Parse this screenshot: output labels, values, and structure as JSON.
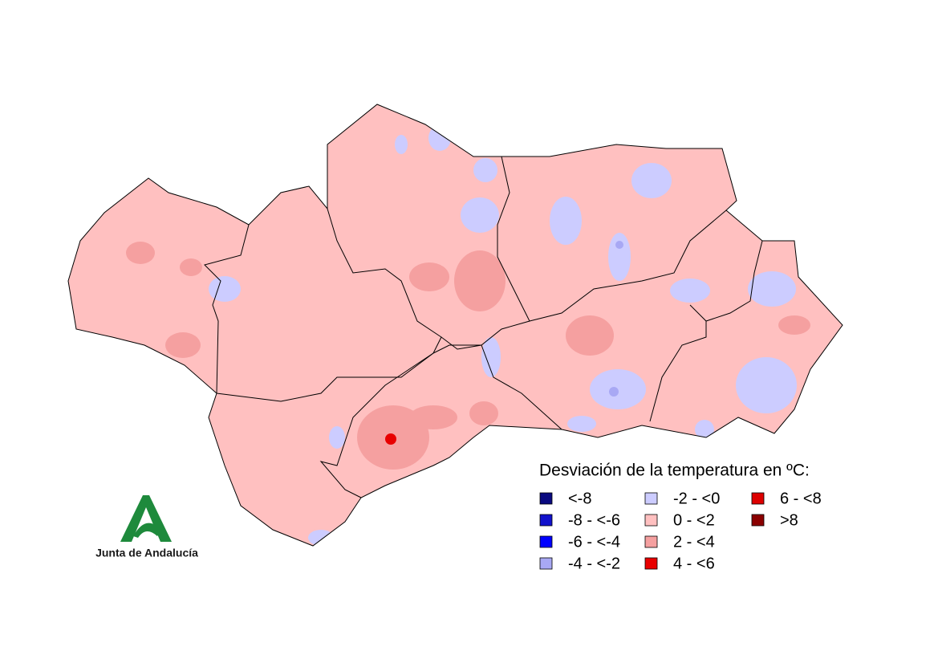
{
  "legend": {
    "title": "Desviación de la temperatura en ºC:",
    "items": [
      {
        "label": "<-8",
        "color": "#0a0a80"
      },
      {
        "label": "-8 - <-6",
        "color": "#1212cc"
      },
      {
        "label": "-6 - <-4",
        "color": "#0000ff"
      },
      {
        "label": "-4 - <-2",
        "color": "#a8a8f4"
      },
      {
        "label": "-2 - <0",
        "color": "#ccccff"
      },
      {
        "label": "0 - <2",
        "color": "#ffc0c0"
      },
      {
        "label": "2 - <4",
        "color": "#f5a0a0"
      },
      {
        "label": "4 - <6",
        "color": "#e80000"
      },
      {
        "label": "6 - <8",
        "color": "#dd0000"
      },
      {
        "label": ">8",
        "color": "#8b0000"
      }
    ]
  },
  "logo": {
    "text": "Junta de Andalucía"
  }
}
